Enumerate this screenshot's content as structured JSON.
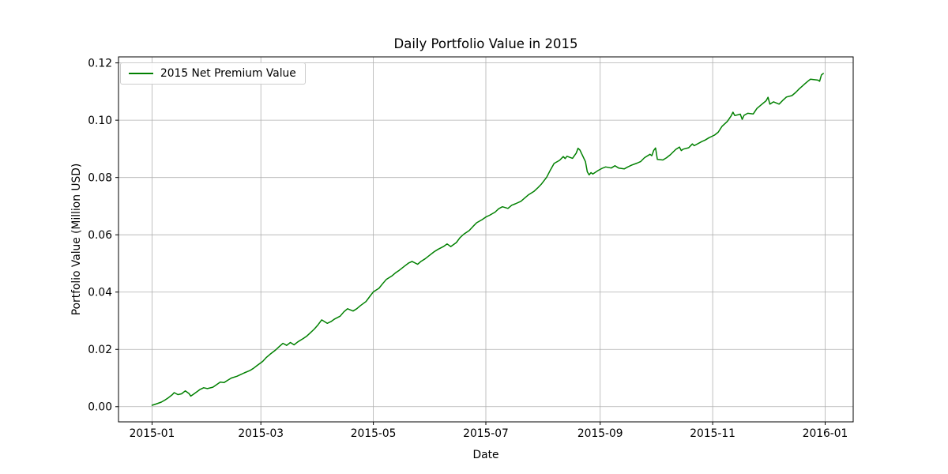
{
  "figure": {
    "title": "Daily Portfolio Value in 2015",
    "xlabel": "Date",
    "ylabel": "Portfolio Value (Million USD)",
    "legend_label": "2015 Net Premium Value"
  },
  "colors": {
    "series_green": "#008000",
    "grid": "#b0b0b0",
    "spine": "#000000",
    "background": "#ffffff",
    "legend_border": "#cccccc"
  },
  "chart_data": {
    "type": "line",
    "title": "Daily Portfolio Value in 2015",
    "xlabel": "Date",
    "ylabel": "Portfolio Value (Million USD)",
    "grid": true,
    "legend_position": "upper left",
    "ylim": [
      -0.0053,
      0.1221
    ],
    "xlim_days": [
      -18.2,
      380.2
    ],
    "y_ticks": [
      0.0,
      0.02,
      0.04,
      0.06,
      0.08,
      0.1,
      0.12
    ],
    "x_ticks": [
      {
        "date": "2015-01-01",
        "label": "2015-01"
      },
      {
        "date": "2015-03-01",
        "label": "2015-03"
      },
      {
        "date": "2015-05-01",
        "label": "2015-05"
      },
      {
        "date": "2015-07-01",
        "label": "2015-07"
      },
      {
        "date": "2015-09-01",
        "label": "2015-09"
      },
      {
        "date": "2015-11-01",
        "label": "2015-11"
      },
      {
        "date": "2016-01-01",
        "label": "2016-01"
      }
    ],
    "series": [
      {
        "name": "2015 Net Premium Value",
        "color": "#008000",
        "points": [
          [
            "2015-01-01",
            0.0005
          ],
          [
            "2015-01-03",
            0.0009
          ],
          [
            "2015-01-06",
            0.0016
          ],
          [
            "2015-01-08",
            0.0023
          ],
          [
            "2015-01-10",
            0.0032
          ],
          [
            "2015-01-12",
            0.0042
          ],
          [
            "2015-01-13",
            0.0049
          ],
          [
            "2015-01-15",
            0.0042
          ],
          [
            "2015-01-17",
            0.0045
          ],
          [
            "2015-01-19",
            0.0055
          ],
          [
            "2015-01-21",
            0.0046
          ],
          [
            "2015-01-22",
            0.0037
          ],
          [
            "2015-01-24",
            0.0046
          ],
          [
            "2015-01-27",
            0.006
          ],
          [
            "2015-01-29",
            0.0066
          ],
          [
            "2015-01-31",
            0.0063
          ],
          [
            "2015-02-03",
            0.0068
          ],
          [
            "2015-02-05",
            0.0077
          ],
          [
            "2015-02-07",
            0.0086
          ],
          [
            "2015-02-09",
            0.0084
          ],
          [
            "2015-02-11",
            0.0092
          ],
          [
            "2015-02-13",
            0.01
          ],
          [
            "2015-02-16",
            0.0106
          ],
          [
            "2015-02-18",
            0.0112
          ],
          [
            "2015-02-20",
            0.0118
          ],
          [
            "2015-02-23",
            0.0126
          ],
          [
            "2015-02-25",
            0.0134
          ],
          [
            "2015-02-27",
            0.0144
          ],
          [
            "2015-03-02",
            0.0158
          ],
          [
            "2015-03-04",
            0.0172
          ],
          [
            "2015-03-06",
            0.0183
          ],
          [
            "2015-03-09",
            0.0198
          ],
          [
            "2015-03-11",
            0.021
          ],
          [
            "2015-03-13",
            0.0221
          ],
          [
            "2015-03-15",
            0.0214
          ],
          [
            "2015-03-17",
            0.0224
          ],
          [
            "2015-03-19",
            0.0216
          ],
          [
            "2015-03-21",
            0.0226
          ],
          [
            "2015-03-24",
            0.0238
          ],
          [
            "2015-03-26",
            0.0247
          ],
          [
            "2015-03-28",
            0.0259
          ],
          [
            "2015-03-30",
            0.0271
          ],
          [
            "2015-04-01",
            0.0286
          ],
          [
            "2015-04-03",
            0.0303
          ],
          [
            "2015-04-06",
            0.0291
          ],
          [
            "2015-04-08",
            0.0297
          ],
          [
            "2015-04-10",
            0.0306
          ],
          [
            "2015-04-13",
            0.0316
          ],
          [
            "2015-04-15",
            0.0331
          ],
          [
            "2015-04-17",
            0.0342
          ],
          [
            "2015-04-20",
            0.0334
          ],
          [
            "2015-04-22",
            0.0342
          ],
          [
            "2015-04-24",
            0.0353
          ],
          [
            "2015-04-27",
            0.0367
          ],
          [
            "2015-04-29",
            0.0384
          ],
          [
            "2015-05-01",
            0.0401
          ],
          [
            "2015-05-04",
            0.0413
          ],
          [
            "2015-05-06",
            0.0429
          ],
          [
            "2015-05-08",
            0.0444
          ],
          [
            "2015-05-11",
            0.0456
          ],
          [
            "2015-05-13",
            0.0467
          ],
          [
            "2015-05-15",
            0.0476
          ],
          [
            "2015-05-18",
            0.0491
          ],
          [
            "2015-05-20",
            0.0501
          ],
          [
            "2015-05-22",
            0.0507
          ],
          [
            "2015-05-25",
            0.0497
          ],
          [
            "2015-05-27",
            0.0508
          ],
          [
            "2015-05-29",
            0.0516
          ],
          [
            "2015-06-01",
            0.0531
          ],
          [
            "2015-06-03",
            0.0541
          ],
          [
            "2015-06-05",
            0.0549
          ],
          [
            "2015-06-08",
            0.0559
          ],
          [
            "2015-06-10",
            0.0568
          ],
          [
            "2015-06-12",
            0.0559
          ],
          [
            "2015-06-15",
            0.0573
          ],
          [
            "2015-06-17",
            0.059
          ],
          [
            "2015-06-19",
            0.0602
          ],
          [
            "2015-06-22",
            0.0615
          ],
          [
            "2015-06-24",
            0.0629
          ],
          [
            "2015-06-26",
            0.0642
          ],
          [
            "2015-06-29",
            0.0653
          ],
          [
            "2015-07-01",
            0.0662
          ],
          [
            "2015-07-03",
            0.0668
          ],
          [
            "2015-07-06",
            0.0679
          ],
          [
            "2015-07-08",
            0.0691
          ],
          [
            "2015-07-10",
            0.0698
          ],
          [
            "2015-07-13",
            0.0692
          ],
          [
            "2015-07-15",
            0.0703
          ],
          [
            "2015-07-17",
            0.0708
          ],
          [
            "2015-07-20",
            0.0717
          ],
          [
            "2015-07-22",
            0.0728
          ],
          [
            "2015-07-24",
            0.0739
          ],
          [
            "2015-07-27",
            0.0751
          ],
          [
            "2015-07-29",
            0.0763
          ],
          [
            "2015-07-31",
            0.0776
          ],
          [
            "2015-08-03",
            0.0801
          ],
          [
            "2015-08-05",
            0.0826
          ],
          [
            "2015-08-07",
            0.0849
          ],
          [
            "2015-08-10",
            0.086
          ],
          [
            "2015-08-12",
            0.0873
          ],
          [
            "2015-08-13",
            0.0866
          ],
          [
            "2015-08-14",
            0.0874
          ],
          [
            "2015-08-17",
            0.0867
          ],
          [
            "2015-08-19",
            0.0885
          ],
          [
            "2015-08-20",
            0.0902
          ],
          [
            "2015-08-21",
            0.0896
          ],
          [
            "2015-08-24",
            0.0855
          ],
          [
            "2015-08-25",
            0.082
          ],
          [
            "2015-08-26",
            0.0809
          ],
          [
            "2015-08-27",
            0.0817
          ],
          [
            "2015-08-28",
            0.0812
          ],
          [
            "2015-08-31",
            0.0825
          ],
          [
            "2015-09-02",
            0.0832
          ],
          [
            "2015-09-04",
            0.0837
          ],
          [
            "2015-09-07",
            0.0833
          ],
          [
            "2015-09-09",
            0.0841
          ],
          [
            "2015-09-11",
            0.0833
          ],
          [
            "2015-09-14",
            0.083
          ],
          [
            "2015-09-16",
            0.0837
          ],
          [
            "2015-09-18",
            0.0843
          ],
          [
            "2015-09-21",
            0.085
          ],
          [
            "2015-09-23",
            0.0856
          ],
          [
            "2015-09-25",
            0.0869
          ],
          [
            "2015-09-28",
            0.0881
          ],
          [
            "2015-09-29",
            0.0876
          ],
          [
            "2015-09-30",
            0.0894
          ],
          [
            "2015-10-01",
            0.0903
          ],
          [
            "2015-10-02",
            0.0863
          ],
          [
            "2015-10-05",
            0.0861
          ],
          [
            "2015-10-07",
            0.0869
          ],
          [
            "2015-10-09",
            0.0879
          ],
          [
            "2015-10-12",
            0.0898
          ],
          [
            "2015-10-14",
            0.0906
          ],
          [
            "2015-10-15",
            0.0894
          ],
          [
            "2015-10-16",
            0.0899
          ],
          [
            "2015-10-19",
            0.0904
          ],
          [
            "2015-10-21",
            0.0917
          ],
          [
            "2015-10-22",
            0.0911
          ],
          [
            "2015-10-26",
            0.0925
          ],
          [
            "2015-10-28",
            0.0931
          ],
          [
            "2015-10-30",
            0.0939
          ],
          [
            "2015-11-02",
            0.0948
          ],
          [
            "2015-11-04",
            0.0958
          ],
          [
            "2015-11-06",
            0.0978
          ],
          [
            "2015-11-09",
            0.0996
          ],
          [
            "2015-11-11",
            0.1015
          ],
          [
            "2015-11-12",
            0.1028
          ],
          [
            "2015-11-13",
            0.1016
          ],
          [
            "2015-11-16",
            0.1021
          ],
          [
            "2015-11-17",
            0.1003
          ],
          [
            "2015-11-18",
            0.1017
          ],
          [
            "2015-11-20",
            0.1024
          ],
          [
            "2015-11-23",
            0.1022
          ],
          [
            "2015-11-25",
            0.1041
          ],
          [
            "2015-11-27",
            0.1052
          ],
          [
            "2015-11-30",
            0.1068
          ],
          [
            "2015-12-01",
            0.108
          ],
          [
            "2015-12-02",
            0.1056
          ],
          [
            "2015-12-04",
            0.1064
          ],
          [
            "2015-12-07",
            0.1056
          ],
          [
            "2015-12-09",
            0.1069
          ],
          [
            "2015-12-11",
            0.1081
          ],
          [
            "2015-12-14",
            0.1086
          ],
          [
            "2015-12-16",
            0.1097
          ],
          [
            "2015-12-18",
            0.111
          ],
          [
            "2015-12-21",
            0.1127
          ],
          [
            "2015-12-23",
            0.1138
          ],
          [
            "2015-12-24",
            0.1143
          ],
          [
            "2015-12-28",
            0.114
          ],
          [
            "2015-12-29",
            0.1136
          ],
          [
            "2015-12-30",
            0.1158
          ],
          [
            "2015-12-31",
            0.1163
          ]
        ]
      }
    ]
  }
}
